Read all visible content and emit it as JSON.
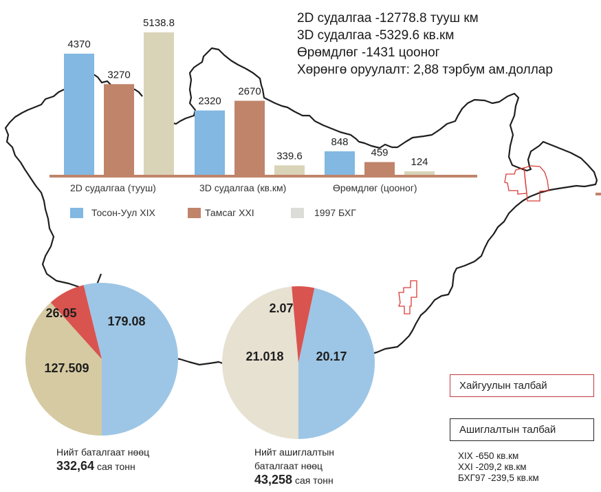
{
  "summary": {
    "lines": [
      "2D судалгаа -12778.8 тууш км",
      "3D судалгаа -5329.6 кв.км",
      "Өрөмдлөг -1431 цооног",
      "Хөрөнгө оруулалт: 2,88 тэрбум ам.доллар"
    ]
  },
  "colors": {
    "tosonuul": "#82b8e2",
    "tamsag": "#c0846a",
    "bhg1997": "#d9d4b8",
    "legend_bhg1997": "#dcdcd8",
    "pie_blue": "#9dc6e6",
    "pie_red": "#d9534f",
    "pie1_tan": "#d6caa2",
    "pie2_cream": "#e6e1d1",
    "baseline": "#c0846a",
    "map_border": "#1e1e1e",
    "license_outline": "#d93a36"
  },
  "chart_data": [
    {
      "type": "bar",
      "title": "",
      "categories": [
        "2D судалгаа   (тууш)",
        "3D судалгаа (кв.км)",
        "Өрөмдлөг  (цооног)"
      ],
      "series": [
        {
          "name": "Тосон-Уул XIX",
          "values": [
            4370,
            2320,
            848
          ],
          "labels": [
            "4370",
            "2320",
            "848"
          ]
        },
        {
          "name": "Тамсаг XXI",
          "values": [
            3270,
            2670,
            459
          ],
          "labels": [
            "3270",
            "2670",
            "459"
          ]
        },
        {
          "name": "1997 БХГ",
          "values": [
            5138.8,
            339.6,
            124
          ],
          "labels": [
            "5138.8",
            "339.6",
            "124"
          ]
        }
      ],
      "legend_position": "bottom",
      "grid": false,
      "value_labels": true,
      "ylim": [
        0,
        5138.8
      ]
    },
    {
      "type": "pie",
      "title": "Нийт баталгаат нөөц",
      "total_value": "332,64",
      "total_unit": "сая тонн",
      "slices": [
        {
          "label": "179.08",
          "value": 179.08,
          "color_key": "pie_blue"
        },
        {
          "label": "127.509",
          "value": 127.509,
          "color_key": "pie1_tan"
        },
        {
          "label": "26.05",
          "value": 26.05,
          "color_key": "pie_red"
        }
      ]
    },
    {
      "type": "pie",
      "title": "Нийт ашиглалтын баталгаат нөөц",
      "title_lines": [
        "Нийт ашиглалтын",
        "баталгаат нөөц"
      ],
      "total_value": "43,258",
      "total_unit": "сая тонн",
      "slices": [
        {
          "label": "20.17",
          "value": 20.17,
          "color_key": "pie_blue"
        },
        {
          "label": "21.018",
          "value": 21.018,
          "color_key": "pie2_cream"
        },
        {
          "label": "2.07",
          "value": 2.07,
          "color_key": "pie_red"
        }
      ]
    }
  ],
  "map_legend": {
    "exploration_area": "Хайгуулын талбай",
    "exploitation_area": "Ашиглалтын талбай",
    "areas": [
      "XIX -650 кв.км",
      "XXI -209,2 кв.км",
      "БХГ97 -239,5 кв.км"
    ]
  }
}
